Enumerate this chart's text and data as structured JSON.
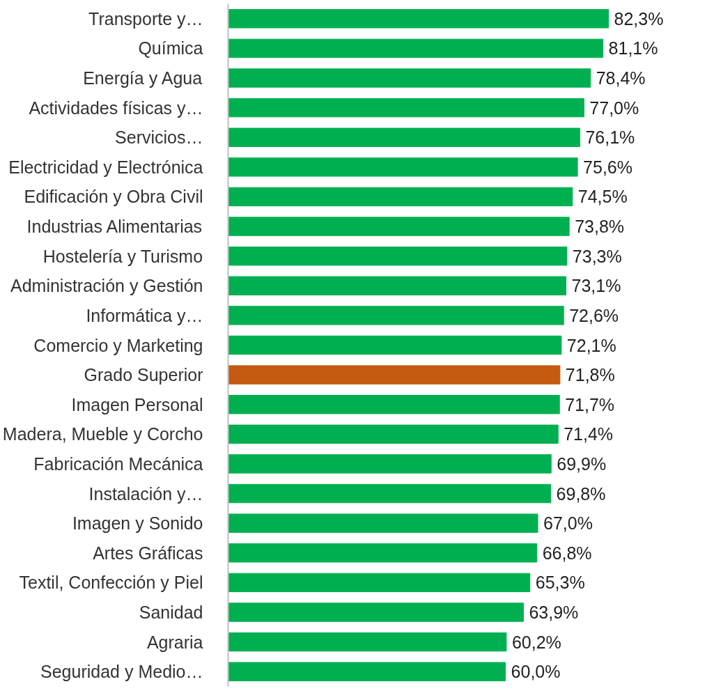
{
  "chart_data": {
    "type": "bar",
    "orientation": "horizontal",
    "categories": [
      "Transporte y…",
      "Química",
      "Energía y Agua",
      "Actividades físicas y…",
      "Servicios…",
      "Electricidad y Electrónica",
      "Edificación y Obra Civil",
      "Industrias Alimentarias",
      "Hostelería y Turismo",
      "Administración y Gestión",
      "Informática y…",
      "Comercio y Marketing",
      "Grado Superior",
      "Imagen Personal",
      "Madera, Mueble y Corcho",
      "Fabricación Mecánica",
      "Instalación y…",
      "Imagen y Sonido",
      "Artes Gráficas",
      "Textil, Confección y Piel",
      "Sanidad",
      "Agraria",
      "Seguridad y Medio…"
    ],
    "values": [
      82.3,
      81.1,
      78.4,
      77.0,
      76.1,
      75.6,
      74.5,
      73.8,
      73.3,
      73.1,
      72.6,
      72.1,
      71.8,
      71.7,
      71.4,
      69.9,
      69.8,
      67.0,
      66.8,
      65.3,
      63.9,
      60.2,
      60.0
    ],
    "value_labels": [
      "82,3%",
      "81,1%",
      "78,4%",
      "77,0%",
      "76,1%",
      "75,6%",
      "74,5%",
      "73,8%",
      "73,3%",
      "73,1%",
      "72,6%",
      "72,1%",
      "71,8%",
      "71,7%",
      "71,4%",
      "69,9%",
      "69,8%",
      "67,0%",
      "66,8%",
      "65,3%",
      "63,9%",
      "60,2%",
      "60,0%"
    ],
    "colors": [
      "#00b050",
      "#00b050",
      "#00b050",
      "#00b050",
      "#00b050",
      "#00b050",
      "#00b050",
      "#00b050",
      "#00b050",
      "#00b050",
      "#00b050",
      "#00b050",
      "#c55a11",
      "#00b050",
      "#00b050",
      "#00b050",
      "#00b050",
      "#00b050",
      "#00b050",
      "#00b050",
      "#00b050",
      "#00b050",
      "#00b050"
    ],
    "tick_labels": "y",
    "grid": false
  }
}
